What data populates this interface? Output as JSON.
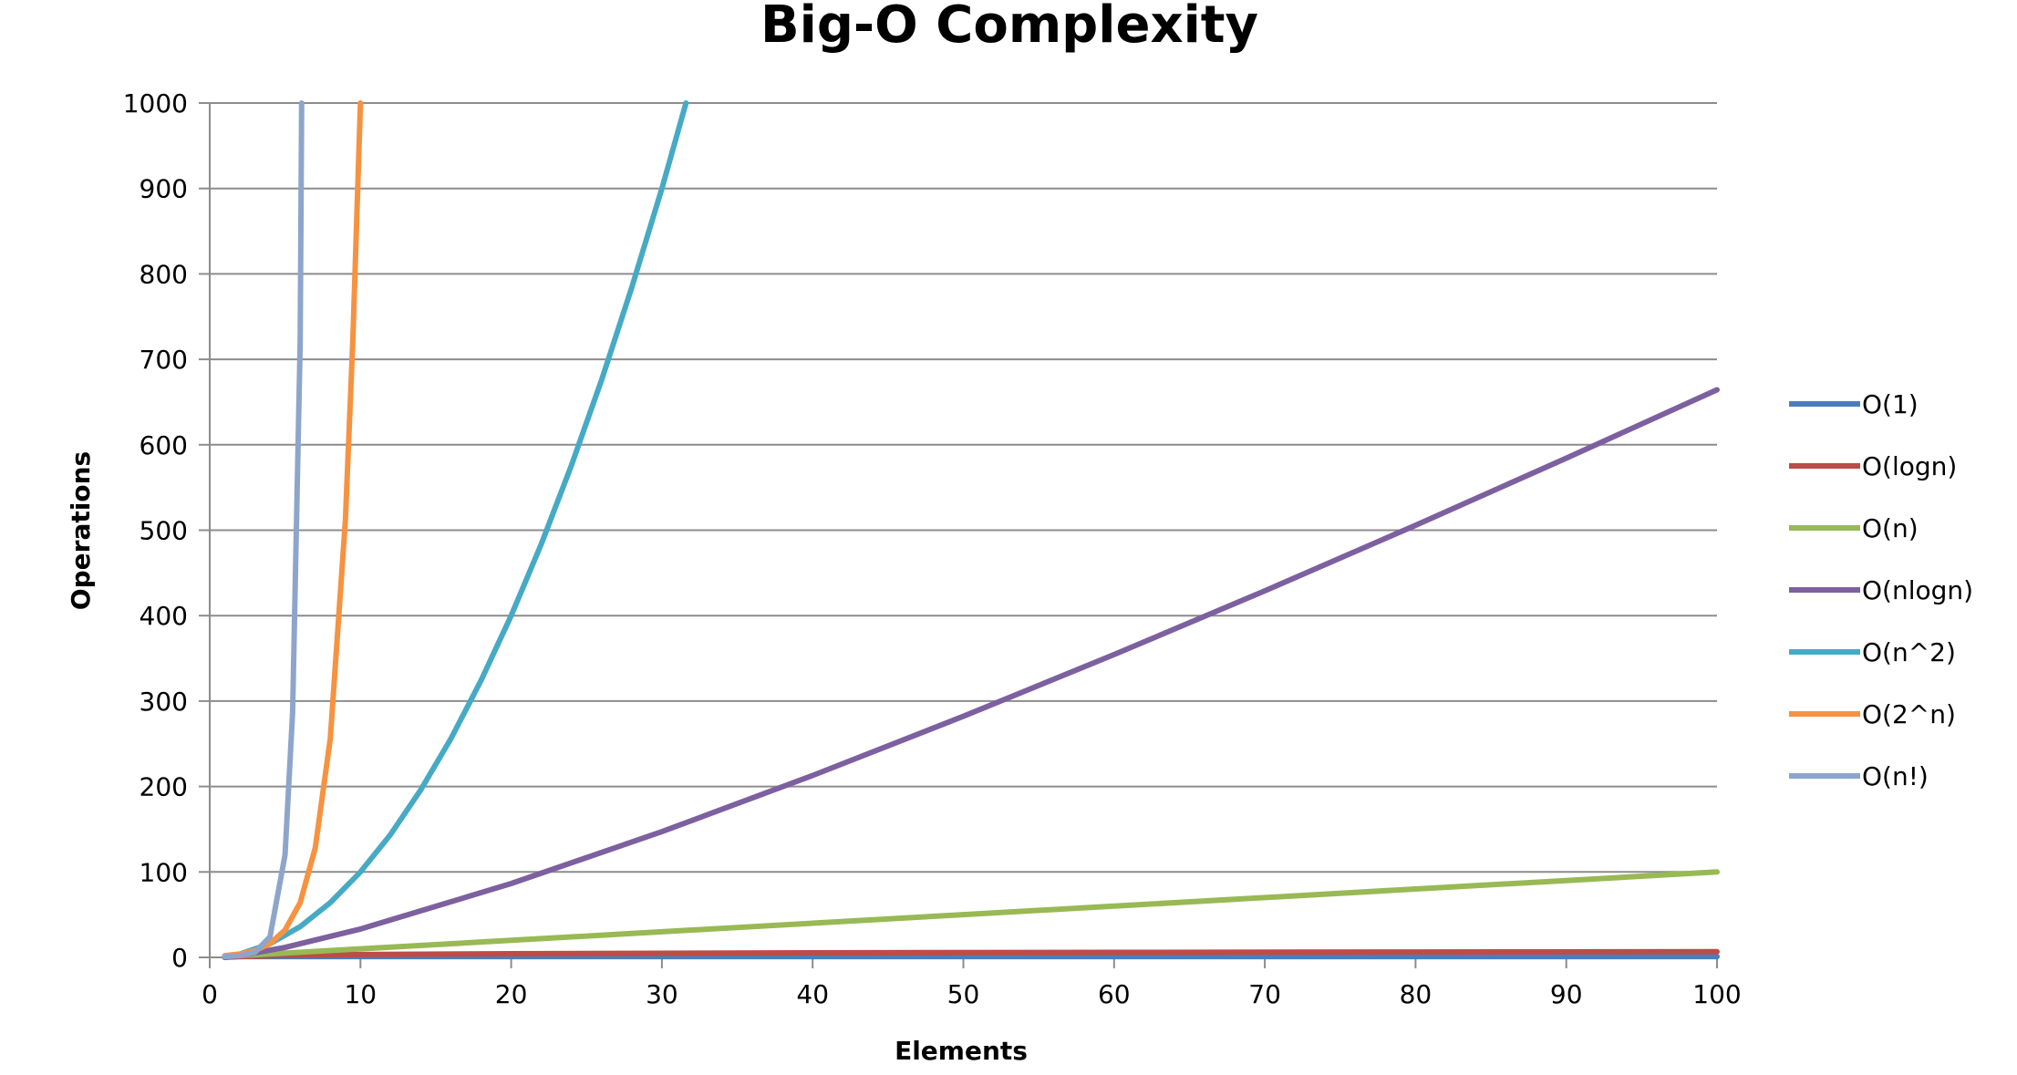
{
  "chart_data": {
    "type": "line",
    "title": "Big-O Complexity",
    "xlabel": "Elements",
    "ylabel": "Operations",
    "xlim": [
      0,
      100
    ],
    "ylim": [
      0,
      1000
    ],
    "x_ticks": [
      "0",
      "10",
      "20",
      "30",
      "40",
      "50",
      "60",
      "70",
      "80",
      "90",
      "100"
    ],
    "y_ticks": [
      "0",
      "100",
      "200",
      "300",
      "400",
      "500",
      "600",
      "700",
      "800",
      "900",
      "1000"
    ],
    "grid": true,
    "legend_position": "right",
    "series": [
      {
        "name": "O(1)",
        "color": "#4a7ebb",
        "x": [
          1,
          100
        ],
        "y": [
          1,
          1
        ]
      },
      {
        "name": "O(logn)",
        "color": "#be4b48",
        "x": [
          1,
          2,
          5,
          10,
          20,
          40,
          60,
          80,
          100
        ],
        "y": [
          0,
          1,
          2.3,
          3.3,
          4.3,
          5.3,
          5.9,
          6.3,
          6.6
        ]
      },
      {
        "name": "O(n)",
        "color": "#98b954",
        "x": [
          1,
          10,
          20,
          30,
          40,
          50,
          60,
          70,
          80,
          90,
          100
        ],
        "y": [
          1,
          10,
          20,
          30,
          40,
          50,
          60,
          70,
          80,
          90,
          100
        ]
      },
      {
        "name": "O(nlogn)",
        "color": "#7d60a0",
        "x": [
          1,
          2,
          5,
          10,
          20,
          30,
          40,
          50,
          60,
          70,
          80,
          90,
          100
        ],
        "y": [
          0,
          2,
          11.6,
          33.2,
          86.4,
          147.2,
          212.9,
          282.2,
          354.4,
          429,
          505.8,
          584.3,
          664.4
        ]
      },
      {
        "name": "O(n^2)",
        "color": "#46aac5",
        "x": [
          1,
          2,
          4,
          6,
          8,
          10,
          12,
          14,
          16,
          18,
          20,
          22,
          24,
          26,
          28,
          30,
          31.6
        ],
        "y": [
          1,
          4,
          16,
          36,
          64,
          100,
          144,
          196,
          256,
          324,
          400,
          484,
          576,
          676,
          784,
          900,
          1000
        ]
      },
      {
        "name": "O(2^n)",
        "color": "#f69240",
        "x": [
          1,
          2,
          3,
          4,
          5,
          6,
          7,
          8,
          9,
          9.5,
          10
        ],
        "y": [
          2,
          4,
          8,
          16,
          32,
          64,
          128,
          256,
          512,
          724,
          1000
        ]
      },
      {
        "name": "O(n!)",
        "color": "#8ea5cb",
        "x": [
          1,
          2,
          3,
          4,
          5,
          5.5,
          6,
          6.1
        ],
        "y": [
          1,
          2,
          6,
          24,
          120,
          287,
          720,
          1000
        ]
      }
    ]
  }
}
